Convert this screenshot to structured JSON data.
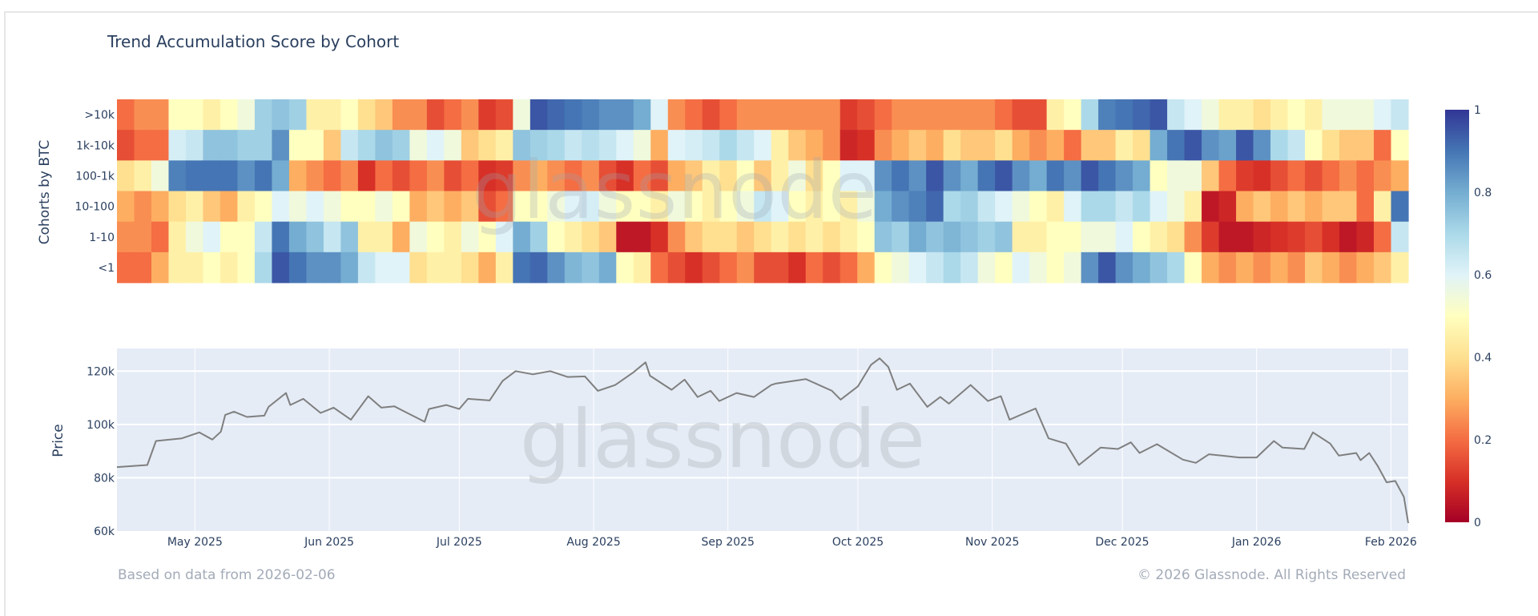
{
  "chart_data": [
    {
      "type": "heatmap",
      "title": "Trend Accumulation Score by Cohort",
      "ylabel": "Cohorts by BTC",
      "categories": [
        ">10k",
        "1k-10k",
        "100-1k",
        "10-100",
        "1-10",
        "<1"
      ],
      "x": [
        "2025-04-13",
        "2025-04-17",
        "2025-04-21",
        "2025-04-25",
        "2025-04-29",
        "2025-05-03",
        "2025-05-07",
        "2025-05-11",
        "2025-05-15",
        "2025-05-19",
        "2025-05-23",
        "2025-05-27",
        "2025-05-31",
        "2025-06-04",
        "2025-06-08",
        "2025-06-12",
        "2025-06-16",
        "2025-06-20",
        "2025-06-24",
        "2025-06-28",
        "2025-07-02",
        "2025-07-06",
        "2025-07-10",
        "2025-07-14",
        "2025-07-18",
        "2025-07-22",
        "2025-07-26",
        "2025-07-30",
        "2025-08-03",
        "2025-08-07",
        "2025-08-11",
        "2025-08-15",
        "2025-08-19",
        "2025-08-23",
        "2025-08-27",
        "2025-08-31",
        "2025-09-04",
        "2025-09-08",
        "2025-09-12",
        "2025-09-16",
        "2025-09-20",
        "2025-09-24",
        "2025-09-28",
        "2025-10-02",
        "2025-10-06",
        "2025-10-10",
        "2025-10-14",
        "2025-10-18",
        "2025-10-22",
        "2025-10-26",
        "2025-10-30",
        "2025-11-03",
        "2025-11-07",
        "2025-11-11",
        "2025-11-15",
        "2025-11-19",
        "2025-11-23",
        "2025-11-27",
        "2025-12-01",
        "2025-12-05",
        "2025-12-09",
        "2025-12-13",
        "2025-12-17",
        "2025-12-21",
        "2025-12-25",
        "2025-12-29",
        "2026-01-02",
        "2026-01-06",
        "2026-01-10",
        "2026-01-14",
        "2026-01-18",
        "2026-01-22",
        "2026-01-26",
        "2026-01-30",
        "2026-02-03"
      ],
      "series": [
        {
          "values": [
            0.2,
            0.25,
            0.25,
            0.5,
            0.5,
            0.45,
            0.5,
            0.55,
            0.72,
            0.75,
            0.72,
            0.45,
            0.45,
            0.5,
            0.4,
            0.35,
            0.25,
            0.25,
            0.15,
            0.2,
            0.25,
            0.12,
            0.15,
            0.55,
            0.95,
            0.92,
            0.9,
            0.88,
            0.85,
            0.85,
            0.8,
            0.6,
            0.25,
            0.2,
            0.15,
            0.2,
            0.25,
            0.25,
            0.25,
            0.25,
            0.25,
            0.25,
            0.12,
            0.15,
            0.2,
            0.25,
            0.25,
            0.25,
            0.25,
            0.25,
            0.25,
            0.2,
            0.15,
            0.15,
            0.45,
            0.5,
            0.7,
            0.88,
            0.9,
            0.92,
            0.95,
            0.65,
            0.6,
            0.55,
            0.45,
            0.45,
            0.4,
            0.45,
            0.5,
            0.45,
            0.55,
            0.55,
            0.55,
            0.6,
            0.65
          ]
        },
        {
          "values": [
            0.15,
            0.2,
            0.2,
            0.62,
            0.65,
            0.75,
            0.75,
            0.72,
            0.72,
            0.85,
            0.5,
            0.5,
            0.35,
            0.65,
            0.7,
            0.75,
            0.72,
            0.55,
            0.6,
            0.55,
            0.35,
            0.4,
            0.45,
            0.75,
            0.72,
            0.7,
            0.65,
            0.68,
            0.65,
            0.6,
            0.55,
            0.3,
            0.6,
            0.62,
            0.65,
            0.7,
            0.65,
            0.6,
            0.45,
            0.35,
            0.3,
            0.25,
            0.08,
            0.1,
            0.25,
            0.3,
            0.35,
            0.3,
            0.4,
            0.35,
            0.35,
            0.4,
            0.3,
            0.25,
            0.3,
            0.2,
            0.35,
            0.35,
            0.45,
            0.4,
            0.8,
            0.9,
            0.95,
            0.85,
            0.82,
            0.95,
            0.85,
            0.7,
            0.65,
            0.5,
            0.4,
            0.35,
            0.35,
            0.2,
            0.5
          ]
        },
        {
          "values": [
            0.4,
            0.45,
            0.55,
            0.88,
            0.9,
            0.9,
            0.9,
            0.85,
            0.9,
            0.8,
            0.3,
            0.25,
            0.2,
            0.25,
            0.1,
            0.2,
            0.15,
            0.2,
            0.25,
            0.15,
            0.2,
            0.1,
            0.12,
            0.25,
            0.3,
            0.25,
            0.2,
            0.25,
            0.15,
            0.1,
            0.2,
            0.15,
            0.3,
            0.35,
            0.45,
            0.4,
            0.5,
            0.35,
            0.45,
            0.55,
            0.4,
            0.5,
            0.6,
            0.6,
            0.85,
            0.9,
            0.85,
            0.95,
            0.85,
            0.8,
            0.9,
            0.95,
            0.85,
            0.8,
            0.9,
            0.85,
            0.95,
            0.9,
            0.85,
            0.8,
            0.5,
            0.55,
            0.55,
            0.35,
            0.2,
            0.12,
            0.1,
            0.15,
            0.2,
            0.15,
            0.2,
            0.25,
            0.2,
            0.25,
            0.3
          ]
        },
        {
          "values": [
            0.3,
            0.25,
            0.3,
            0.4,
            0.45,
            0.35,
            0.3,
            0.45,
            0.5,
            0.6,
            0.55,
            0.6,
            0.55,
            0.5,
            0.5,
            0.55,
            0.5,
            0.3,
            0.35,
            0.3,
            0.35,
            0.15,
            0.2,
            0.5,
            0.5,
            0.55,
            0.6,
            0.62,
            0.55,
            0.5,
            0.5,
            0.45,
            0.55,
            0.5,
            0.45,
            0.5,
            0.55,
            0.65,
            0.6,
            0.5,
            0.45,
            0.5,
            0.45,
            0.55,
            0.8,
            0.85,
            0.88,
            0.92,
            0.7,
            0.72,
            0.65,
            0.6,
            0.55,
            0.5,
            0.45,
            0.6,
            0.7,
            0.7,
            0.65,
            0.7,
            0.6,
            0.55,
            0.45,
            0.05,
            0.08,
            0.3,
            0.35,
            0.3,
            0.35,
            0.3,
            0.35,
            0.35,
            0.2,
            0.45,
            0.9
          ]
        },
        {
          "values": [
            0.25,
            0.25,
            0.2,
            0.45,
            0.55,
            0.6,
            0.5,
            0.5,
            0.65,
            0.9,
            0.8,
            0.75,
            0.65,
            0.75,
            0.45,
            0.45,
            0.3,
            0.55,
            0.5,
            0.45,
            0.55,
            0.5,
            0.6,
            0.8,
            0.72,
            0.5,
            0.45,
            0.4,
            0.35,
            0.05,
            0.05,
            0.1,
            0.25,
            0.35,
            0.4,
            0.4,
            0.35,
            0.4,
            0.45,
            0.4,
            0.45,
            0.4,
            0.45,
            0.5,
            0.75,
            0.72,
            0.8,
            0.75,
            0.78,
            0.75,
            0.72,
            0.75,
            0.45,
            0.45,
            0.5,
            0.5,
            0.55,
            0.55,
            0.6,
            0.5,
            0.45,
            0.4,
            0.25,
            0.12,
            0.05,
            0.05,
            0.08,
            0.1,
            0.12,
            0.15,
            0.1,
            0.05,
            0.08,
            0.2,
            0.65
          ]
        },
        {
          "values": [
            0.2,
            0.2,
            0.3,
            0.45,
            0.45,
            0.5,
            0.45,
            0.5,
            0.7,
            0.95,
            0.9,
            0.85,
            0.85,
            0.8,
            0.65,
            0.6,
            0.6,
            0.4,
            0.45,
            0.45,
            0.4,
            0.3,
            0.45,
            0.9,
            0.92,
            0.85,
            0.78,
            0.75,
            0.8,
            0.5,
            0.45,
            0.2,
            0.15,
            0.1,
            0.15,
            0.2,
            0.25,
            0.15,
            0.15,
            0.1,
            0.2,
            0.15,
            0.2,
            0.3,
            0.5,
            0.55,
            0.6,
            0.65,
            0.7,
            0.65,
            0.55,
            0.5,
            0.6,
            0.55,
            0.5,
            0.55,
            0.85,
            0.95,
            0.85,
            0.8,
            0.75,
            0.7,
            0.5,
            0.3,
            0.25,
            0.3,
            0.25,
            0.3,
            0.25,
            0.35,
            0.3,
            0.25,
            0.3,
            0.35,
            0.45
          ]
        }
      ],
      "colorscale": "RdYlBu",
      "colorscale_stops": [
        "#a50026",
        "#d73027",
        "#f46d43",
        "#fdae61",
        "#fee090",
        "#ffffbf",
        "#e0f3f8",
        "#abd9e9",
        "#74add1",
        "#4575b4",
        "#313695"
      ],
      "zlim": [
        0,
        1
      ],
      "colorbar_ticks": [
        "0",
        "0.2",
        "0.4",
        "0.6",
        "0.8",
        "1"
      ],
      "watermark": "glassnode"
    },
    {
      "type": "line",
      "ylabel": "Price",
      "ylim": [
        60000,
        128500
      ],
      "y_ticks": [
        {
          "v": 60000,
          "label": "60k"
        },
        {
          "v": 80000,
          "label": "80k"
        },
        {
          "v": 100000,
          "label": "100k"
        },
        {
          "v": 120000,
          "label": "120k"
        }
      ],
      "xlim": [
        "2025-04-13",
        "2026-02-05"
      ],
      "x_ticks": [
        {
          "d": "2025-05-01",
          "label": "May 2025"
        },
        {
          "d": "2025-06-01",
          "label": "Jun 2025"
        },
        {
          "d": "2025-07-01",
          "label": "Jul 2025"
        },
        {
          "d": "2025-08-01",
          "label": "Aug 2025"
        },
        {
          "d": "2025-09-01",
          "label": "Sep 2025"
        },
        {
          "d": "2025-10-01",
          "label": "Oct 2025"
        },
        {
          "d": "2025-11-01",
          "label": "Nov 2025"
        },
        {
          "d": "2025-12-01",
          "label": "Dec 2025"
        },
        {
          "d": "2026-01-01",
          "label": "Jan 2026"
        },
        {
          "d": "2026-02-01",
          "label": "Feb 2026"
        }
      ],
      "line_color": "#7f7f7f",
      "plot_bg": "#e5ecf6",
      "grid": true,
      "points": [
        [
          "2025-04-13",
          84000
        ],
        [
          "2025-04-20",
          84800
        ],
        [
          "2025-04-22",
          93800
        ],
        [
          "2025-04-28",
          94800
        ],
        [
          "2025-05-02",
          97000
        ],
        [
          "2025-05-05",
          94300
        ],
        [
          "2025-05-07",
          97300
        ],
        [
          "2025-05-08",
          103600
        ],
        [
          "2025-05-10",
          104800
        ],
        [
          "2025-05-13",
          102800
        ],
        [
          "2025-05-17",
          103300
        ],
        [
          "2025-05-18",
          106600
        ],
        [
          "2025-05-22",
          111800
        ],
        [
          "2025-05-23",
          107300
        ],
        [
          "2025-05-26",
          109600
        ],
        [
          "2025-05-30",
          104300
        ],
        [
          "2025-06-02",
          106300
        ],
        [
          "2025-06-06",
          101800
        ],
        [
          "2025-06-10",
          110600
        ],
        [
          "2025-06-13",
          106300
        ],
        [
          "2025-06-16",
          106800
        ],
        [
          "2025-06-19",
          104300
        ],
        [
          "2025-06-23",
          101000
        ],
        [
          "2025-06-24",
          105800
        ],
        [
          "2025-06-28",
          107300
        ],
        [
          "2025-07-01",
          105800
        ],
        [
          "2025-07-03",
          109600
        ],
        [
          "2025-07-08",
          109000
        ],
        [
          "2025-07-11",
          116300
        ],
        [
          "2025-07-14",
          120000
        ],
        [
          "2025-07-18",
          118800
        ],
        [
          "2025-07-22",
          120000
        ],
        [
          "2025-07-26",
          117800
        ],
        [
          "2025-07-30",
          118000
        ],
        [
          "2025-08-02",
          112600
        ],
        [
          "2025-08-06",
          114800
        ],
        [
          "2025-08-10",
          119300
        ],
        [
          "2025-08-13",
          123300
        ],
        [
          "2025-08-14",
          118300
        ],
        [
          "2025-08-19",
          113000
        ],
        [
          "2025-08-22",
          116800
        ],
        [
          "2025-08-25",
          110300
        ],
        [
          "2025-08-28",
          112600
        ],
        [
          "2025-08-30",
          108800
        ],
        [
          "2025-09-03",
          111800
        ],
        [
          "2025-09-07",
          110300
        ],
        [
          "2025-09-11",
          114800
        ],
        [
          "2025-09-12",
          115300
        ],
        [
          "2025-09-19",
          117000
        ],
        [
          "2025-09-25",
          112600
        ],
        [
          "2025-09-27",
          109300
        ],
        [
          "2025-10-01",
          114300
        ],
        [
          "2025-10-04",
          122300
        ],
        [
          "2025-10-06",
          124800
        ],
        [
          "2025-10-08",
          121600
        ],
        [
          "2025-10-10",
          113000
        ],
        [
          "2025-10-13",
          115300
        ],
        [
          "2025-10-17",
          106600
        ],
        [
          "2025-10-20",
          110300
        ],
        [
          "2025-10-22",
          107800
        ],
        [
          "2025-10-27",
          114800
        ],
        [
          "2025-10-31",
          108800
        ],
        [
          "2025-11-03",
          110600
        ],
        [
          "2025-11-05",
          101800
        ],
        [
          "2025-11-11",
          106000
        ],
        [
          "2025-11-14",
          94800
        ],
        [
          "2025-11-18",
          92800
        ],
        [
          "2025-11-21",
          84800
        ],
        [
          "2025-11-26",
          91300
        ],
        [
          "2025-11-30",
          90800
        ],
        [
          "2025-12-03",
          93300
        ],
        [
          "2025-12-05",
          89300
        ],
        [
          "2025-12-09",
          92600
        ],
        [
          "2025-12-15",
          86800
        ],
        [
          "2025-12-18",
          85600
        ],
        [
          "2025-12-21",
          88800
        ],
        [
          "2025-12-28",
          87600
        ],
        [
          "2026-01-01",
          87600
        ],
        [
          "2026-01-05",
          93800
        ],
        [
          "2026-01-07",
          91300
        ],
        [
          "2026-01-12",
          90800
        ],
        [
          "2026-01-14",
          97000
        ],
        [
          "2026-01-18",
          92800
        ],
        [
          "2026-01-20",
          88300
        ],
        [
          "2026-01-24",
          89300
        ],
        [
          "2026-01-25",
          86600
        ],
        [
          "2026-01-27",
          89300
        ],
        [
          "2026-01-29",
          84300
        ],
        [
          "2026-01-31",
          78300
        ],
        [
          "2026-02-02",
          78800
        ],
        [
          "2026-02-04",
          72800
        ],
        [
          "2026-02-05",
          63000
        ]
      ],
      "watermark": "glassnode"
    }
  ],
  "footer": {
    "left": "Based on data from 2026-02-06",
    "right": "© 2026 Glassnode. All Rights Reserved"
  }
}
